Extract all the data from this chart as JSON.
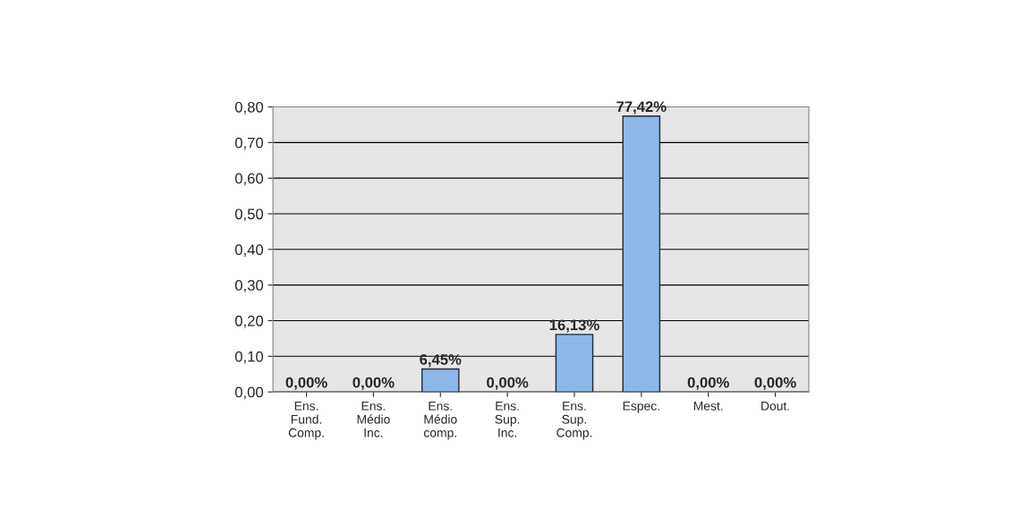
{
  "chart_data": {
    "type": "bar",
    "categories": [
      "Ens.\nFund.\nComp.",
      "Ens.\nMédio\nInc.",
      "Ens.\nMédio\ncomp.",
      "Ens.\nSup.\nInc.",
      "Ens.\nSup.\nComp.",
      "Espec.",
      "Mest.",
      "Dout."
    ],
    "values": [
      0,
      0,
      0.0645,
      0,
      0.1613,
      0.7742,
      0,
      0
    ],
    "value_labels": [
      "0,00%",
      "0,00%",
      "6,45%",
      "0,00%",
      "16,13%",
      "77,42%",
      "0,00%",
      "0,00%"
    ],
    "color": "#8db7e6",
    "ylim": [
      0,
      0.8
    ],
    "yticks": [
      {
        "value": 0,
        "label": "0,00"
      },
      {
        "value": 0.1,
        "label": "0,10"
      },
      {
        "value": 0.2,
        "label": "0,20"
      },
      {
        "value": 0.3,
        "label": "0,30"
      },
      {
        "value": 0.4,
        "label": "0,40"
      },
      {
        "value": 0.5,
        "label": "0,50"
      },
      {
        "value": 0.6,
        "label": "0,60"
      },
      {
        "value": 0.7,
        "label": "0,70"
      },
      {
        "value": 0.8,
        "label": "0,80"
      }
    ],
    "grid": "y"
  }
}
